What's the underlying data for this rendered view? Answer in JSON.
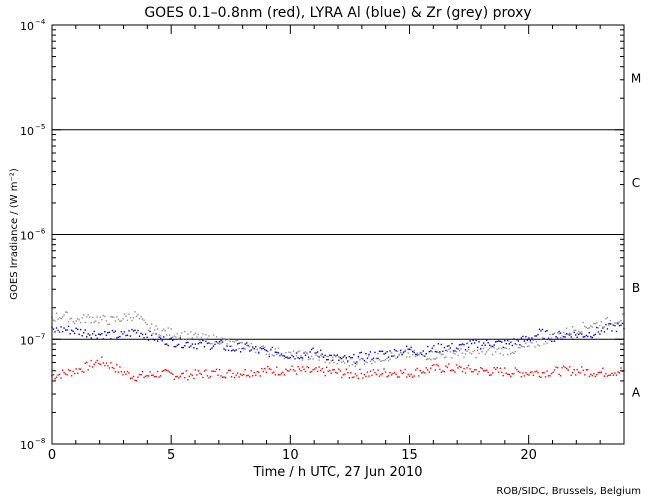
{
  "chart_data": {
    "type": "scatter",
    "title": "GOES 0.1–0.8nm (red), LYRA Al (blue) & Zr (grey) proxy",
    "xlabel": "Time / h UTC, 27 Jun 2010",
    "ylabel": "GOES Irradiance / (W m⁻²)",
    "xlim": [
      0,
      24
    ],
    "ylim": [
      1e-08,
      0.0001
    ],
    "yscale": "log",
    "x_ticks": [
      0,
      5,
      10,
      15,
      20
    ],
    "x_tick_labels": [
      "0",
      "5",
      "10",
      "15",
      "20"
    ],
    "y_ticks": [
      1e-08,
      1e-07,
      1e-06,
      1e-05,
      0.0001
    ],
    "y_tick_labels": [
      {
        "base": "10",
        "exp": "−8"
      },
      {
        "base": "10",
        "exp": "−7"
      },
      {
        "base": "10",
        "exp": "−6"
      },
      {
        "base": "10",
        "exp": "−5"
      },
      {
        "base": "10",
        "exp": "−4"
      }
    ],
    "flare_class_lines": [
      1e-07,
      1e-06,
      1e-05
    ],
    "flare_classes": [
      {
        "label": "A",
        "value": 3.16e-08
      },
      {
        "label": "B",
        "value": 3.16e-07
      },
      {
        "label": "C",
        "value": 3.16e-06
      },
      {
        "label": "M",
        "value": 3.16e-05
      }
    ],
    "grid": false,
    "series": [
      {
        "color": "#ff0000",
        "x": [
          0,
          0.5,
          1.0,
          1.5,
          2.0,
          2.5,
          3.0,
          3.5,
          4.0,
          4.5,
          5.0,
          5.5,
          6.0,
          6.5,
          7.0,
          7.5,
          8.0,
          8.5,
          9.0,
          9.5,
          10.0,
          10.5,
          11.0,
          11.5,
          12.0,
          12.5,
          13.0,
          13.5,
          14.0,
          14.5,
          15.0,
          15.5,
          16.0,
          16.5,
          17.0,
          17.5,
          18.0,
          18.5,
          19.0,
          19.5,
          20.0,
          20.5,
          21.0,
          21.5,
          22.0,
          22.5,
          23.0,
          23.5,
          24.0
        ],
        "y": [
          4.5e-08,
          4.7e-08,
          5e-08,
          5.5e-08,
          6.2e-08,
          5.6e-08,
          4.8e-08,
          4.4e-08,
          4.5e-08,
          4.7e-08,
          4.6e-08,
          4.5e-08,
          4.6e-08,
          4.7e-08,
          4.8e-08,
          4.7e-08,
          4.8e-08,
          4.9e-08,
          5e-08,
          5e-08,
          5.1e-08,
          5e-08,
          4.9e-08,
          4.9e-08,
          4.8e-08,
          4.6e-08,
          4.7e-08,
          4.7e-08,
          4.8e-08,
          4.8e-08,
          4.7e-08,
          5e-08,
          5.2e-08,
          5.3e-08,
          5.2e-08,
          5.1e-08,
          5e-08,
          4.9e-08,
          4.9e-08,
          4.8e-08,
          4.8e-08,
          4.8e-08,
          4.9e-08,
          5e-08,
          5e-08,
          4.9e-08,
          4.8e-08,
          4.9e-08,
          5e-08
        ]
      },
      {
        "color": "#0000cc",
        "x": [
          0,
          0.5,
          1.0,
          1.5,
          2.0,
          2.5,
          3.0,
          3.5,
          4.0,
          4.5,
          5.0,
          5.5,
          6.0,
          6.5,
          7.0,
          7.5,
          8.0,
          8.5,
          9.0,
          9.5,
          10.0,
          10.5,
          11.0,
          11.5,
          12.0,
          12.5,
          13.0,
          13.5,
          14.0,
          14.5,
          15.0,
          15.5,
          16.0,
          16.5,
          17.0,
          17.5,
          18.0,
          18.5,
          19.0,
          19.5,
          20.0,
          20.5,
          21.0,
          21.5,
          22.0,
          22.5,
          23.0,
          23.5,
          24.0
        ],
        "y": [
          1.2e-07,
          1.25e-07,
          1.2e-07,
          1.15e-07,
          1.12e-07,
          1.1e-07,
          1.08e-07,
          1.2e-07,
          1.1e-07,
          1e-07,
          9.5e-08,
          9.2e-08,
          9e-08,
          8.8e-08,
          9e-08,
          8e-08,
          8.5e-08,
          8e-08,
          7.5e-08,
          7.6e-08,
          7e-08,
          7.2e-08,
          7.5e-08,
          7e-08,
          6.5e-08,
          6.3e-08,
          6.8e-08,
          7e-08,
          7.3e-08,
          7.5e-08,
          8e-08,
          7.5e-08,
          8e-08,
          8.5e-08,
          8.2e-08,
          8.8e-08,
          9e-08,
          9.2e-08,
          9e-08,
          9.5e-08,
          1e-07,
          1.15e-07,
          1.05e-07,
          1.1e-07,
          1.1e-07,
          1.12e-07,
          1.2e-07,
          1.3e-07,
          1.3e-07
        ]
      },
      {
        "color": "#909090",
        "x": [
          0,
          0.5,
          1.0,
          1.5,
          2.0,
          2.5,
          3.0,
          3.5,
          4.0,
          4.5,
          5.0,
          5.5,
          6.0,
          6.5,
          7.0,
          7.5,
          8.0,
          8.5,
          9.0,
          9.5,
          10.0,
          10.5,
          11.0,
          11.5,
          12.0,
          12.5,
          13.0,
          13.5,
          14.0,
          14.5,
          15.0,
          15.5,
          16.0,
          16.5,
          17.0,
          17.5,
          18.0,
          18.5,
          19.0,
          19.5,
          20.0,
          20.5,
          21.0,
          21.5,
          22.0,
          22.5,
          23.0,
          23.5,
          24.0
        ],
        "y": [
          1.6e-07,
          1.7e-07,
          1.5e-07,
          1.6e-07,
          1.55e-07,
          1.5e-07,
          1.6e-07,
          1.7e-07,
          1.3e-07,
          1.2e-07,
          1.15e-07,
          1.1e-07,
          1.05e-07,
          1e-07,
          1e-07,
          9e-08,
          8.8e-08,
          8.2e-08,
          7.8e-08,
          7.5e-08,
          7e-08,
          7e-08,
          6.8e-08,
          6.5e-08,
          6.2e-08,
          6e-08,
          6.3e-08,
          6.5e-08,
          6.8e-08,
          7e-08,
          7.2e-08,
          7e-08,
          7e-08,
          7.2e-08,
          7.5e-08,
          7.2e-08,
          7.5e-08,
          7.8e-08,
          7.8e-08,
          8e-08,
          8.5e-08,
          9.5e-08,
          1.05e-07,
          1.15e-07,
          1.25e-07,
          1.35e-07,
          1.4e-07,
          1.5e-07,
          1.6e-07
        ]
      }
    ]
  },
  "footer": {
    "credit": "ROB/SIDC, Brussels, Belgium"
  }
}
